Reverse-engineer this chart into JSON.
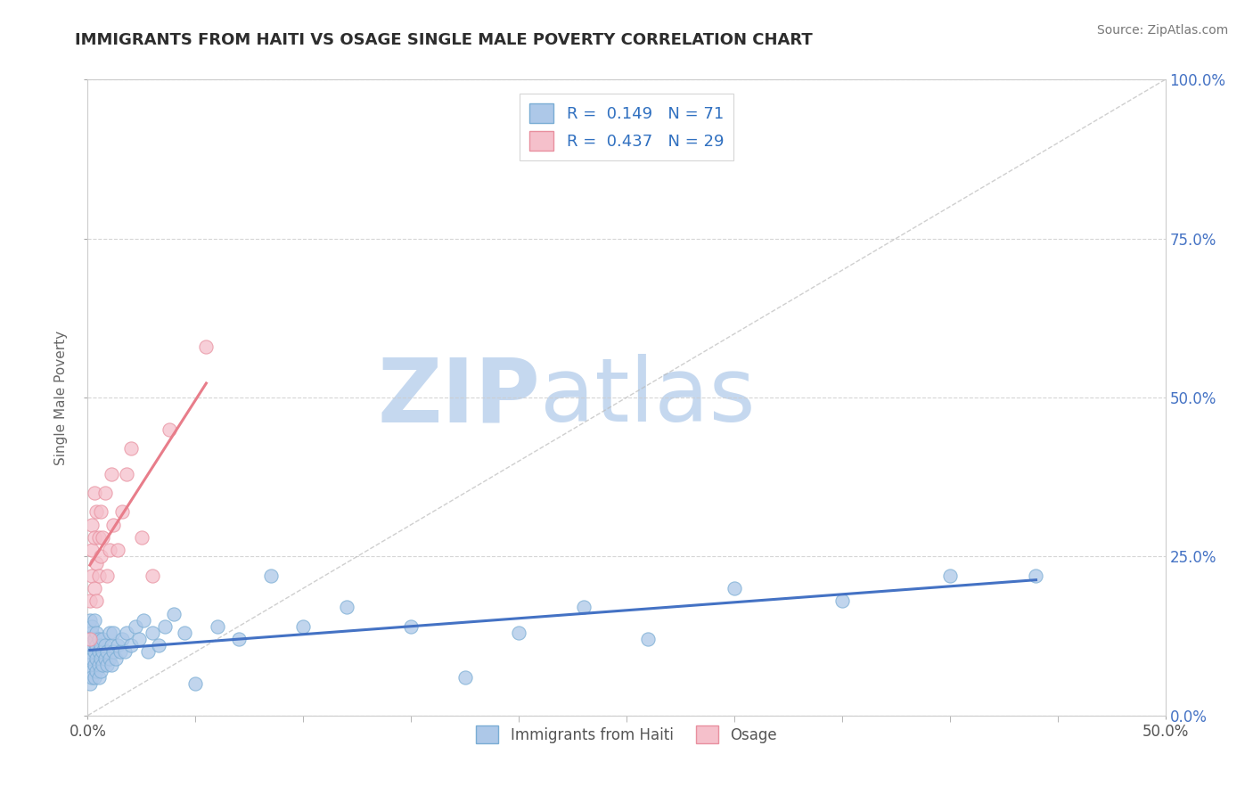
{
  "title": "IMMIGRANTS FROM HAITI VS OSAGE SINGLE MALE POVERTY CORRELATION CHART",
  "source": "Source: ZipAtlas.com",
  "ylabel": "Single Male Poverty",
  "xlim": [
    0.0,
    0.5
  ],
  "ylim": [
    0.0,
    1.0
  ],
  "series1_name": "Immigrants from Haiti",
  "series1_color": "#adc8e8",
  "series1_edge_color": "#7aadd4",
  "series1_line_color": "#4472c4",
  "series1_R": 0.149,
  "series1_N": 71,
  "series2_name": "Osage",
  "series2_color": "#f5c0cb",
  "series2_edge_color": "#e8909f",
  "series2_line_color": "#e87d8a",
  "series2_R": 0.437,
  "series2_N": 29,
  "legend_color": "#3070c0",
  "watermark_zip": "ZIP",
  "watermark_atlas": "atlas",
  "watermark_color_zip": "#c5d8ef",
  "watermark_color_atlas": "#c5d8ef",
  "background_color": "#ffffff",
  "grid_color": "#cccccc",
  "title_color": "#2d2d2d",
  "axis_label_color": "#666666",
  "right_tick_color": "#4472c4",
  "series1_x": [
    0.001,
    0.001,
    0.001,
    0.001,
    0.001,
    0.002,
    0.002,
    0.002,
    0.002,
    0.002,
    0.002,
    0.003,
    0.003,
    0.003,
    0.003,
    0.003,
    0.004,
    0.004,
    0.004,
    0.004,
    0.005,
    0.005,
    0.005,
    0.005,
    0.006,
    0.006,
    0.006,
    0.007,
    0.007,
    0.007,
    0.008,
    0.008,
    0.009,
    0.009,
    0.01,
    0.01,
    0.011,
    0.011,
    0.012,
    0.012,
    0.013,
    0.014,
    0.015,
    0.016,
    0.017,
    0.018,
    0.02,
    0.022,
    0.024,
    0.026,
    0.028,
    0.03,
    0.033,
    0.036,
    0.04,
    0.045,
    0.05,
    0.06,
    0.07,
    0.085,
    0.1,
    0.12,
    0.15,
    0.175,
    0.2,
    0.23,
    0.26,
    0.3,
    0.35,
    0.4,
    0.44
  ],
  "series1_y": [
    0.08,
    0.1,
    0.12,
    0.05,
    0.15,
    0.09,
    0.11,
    0.07,
    0.13,
    0.06,
    0.14,
    0.08,
    0.1,
    0.12,
    0.06,
    0.15,
    0.09,
    0.11,
    0.07,
    0.13,
    0.08,
    0.1,
    0.12,
    0.06,
    0.09,
    0.11,
    0.07,
    0.1,
    0.08,
    0.12,
    0.09,
    0.11,
    0.08,
    0.1,
    0.09,
    0.13,
    0.08,
    0.11,
    0.1,
    0.13,
    0.09,
    0.11,
    0.1,
    0.12,
    0.1,
    0.13,
    0.11,
    0.14,
    0.12,
    0.15,
    0.1,
    0.13,
    0.11,
    0.14,
    0.16,
    0.13,
    0.05,
    0.14,
    0.12,
    0.22,
    0.14,
    0.17,
    0.14,
    0.06,
    0.13,
    0.17,
    0.12,
    0.2,
    0.18,
    0.22,
    0.22
  ],
  "series2_x": [
    0.001,
    0.001,
    0.002,
    0.002,
    0.002,
    0.003,
    0.003,
    0.003,
    0.004,
    0.004,
    0.004,
    0.005,
    0.005,
    0.006,
    0.006,
    0.007,
    0.008,
    0.009,
    0.01,
    0.011,
    0.012,
    0.014,
    0.016,
    0.018,
    0.02,
    0.025,
    0.03,
    0.038,
    0.055
  ],
  "series2_y": [
    0.12,
    0.18,
    0.22,
    0.26,
    0.3,
    0.2,
    0.28,
    0.35,
    0.18,
    0.24,
    0.32,
    0.22,
    0.28,
    0.25,
    0.32,
    0.28,
    0.35,
    0.22,
    0.26,
    0.38,
    0.3,
    0.26,
    0.32,
    0.38,
    0.42,
    0.28,
    0.22,
    0.45,
    0.58
  ],
  "diag_color": "#bbbbbb"
}
